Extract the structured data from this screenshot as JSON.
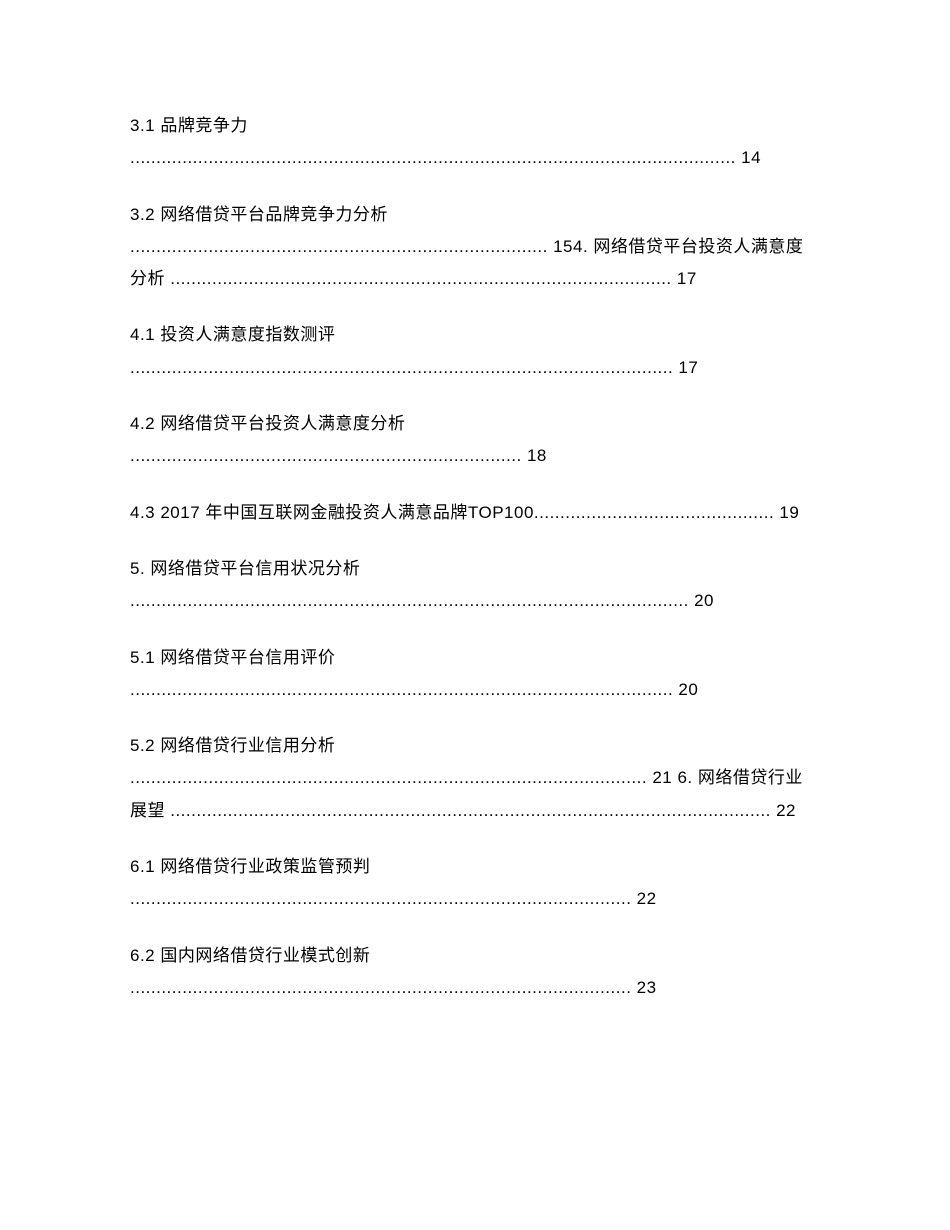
{
  "document": {
    "background_color": "#ffffff",
    "text_color": "#000000",
    "font_size": 17,
    "line_height": 1.9
  },
  "toc": {
    "entries": [
      {
        "title": "3.1 品牌竞争力",
        "dots_text": ".................................................................................................................... 14"
      },
      {
        "title": "3.2 网络借贷平台品牌竞争力分析",
        "dots_text": "................................................................................ 154. 网络借贷平台投资人满意度分析 ................................................................................................ 17"
      },
      {
        "title": "4.1 投资人满意度指数测评",
        "dots_text": "........................................................................................................ 17"
      },
      {
        "title": "4.2 网络借贷平台投资人满意度分析",
        "dots_text": "........................................................................... 18"
      },
      {
        "title": "4.3 2017 年中国互联网金融投资人满意品牌TOP100",
        "dots_text": ".............................................. 19",
        "inline": true
      },
      {
        "title": "5. 网络借贷平台信用状况分析",
        "dots_text": "........................................................................................................... 20"
      },
      {
        "title": "5.1 网络借贷平台信用评价",
        "dots_text": "........................................................................................................ 20"
      },
      {
        "title": "5.2 网络借贷行业信用分析",
        "dots_text": "................................................................................................... 21 6. 网络借贷行业展望 ................................................................................................................... 22"
      },
      {
        "title": "6.1 网络借贷行业政策监管预判",
        "dots_text": "................................................................................................ 22"
      },
      {
        "title": "6.2 国内网络借贷行业模式创新",
        "dots_text": "................................................................................................ 23"
      }
    ]
  }
}
